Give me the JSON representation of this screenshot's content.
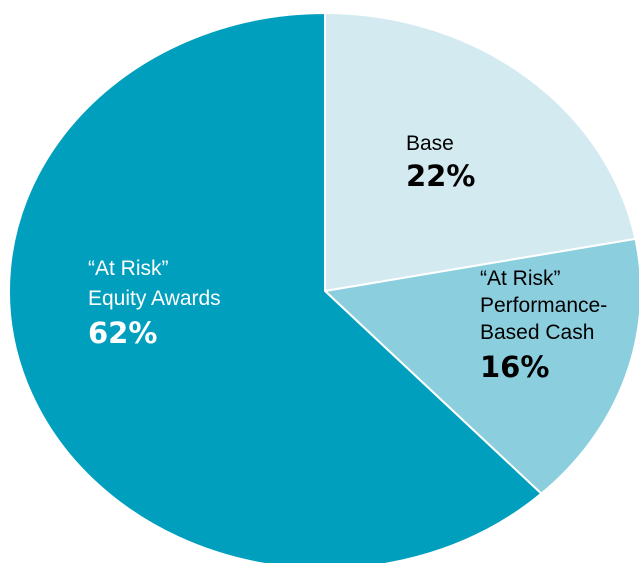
{
  "chart_data": {
    "type": "pie",
    "title": "",
    "slices": [
      {
        "label_lines": [
          "Base"
        ],
        "value": 22,
        "value_label": "22%",
        "color": "#d3eaf0"
      },
      {
        "label_lines": [
          "“At Risk”",
          "Performance-",
          "Based Cash"
        ],
        "value": 16,
        "value_label": "16%",
        "color": "#8bcfdf"
      },
      {
        "label_lines": [
          "“At Risk”",
          "Equity Awards"
        ],
        "value": 62,
        "value_label": "62%",
        "color": "#009fbe"
      }
    ],
    "label_colors": {
      "light": "#000000",
      "dark": "#ffffff"
    }
  }
}
